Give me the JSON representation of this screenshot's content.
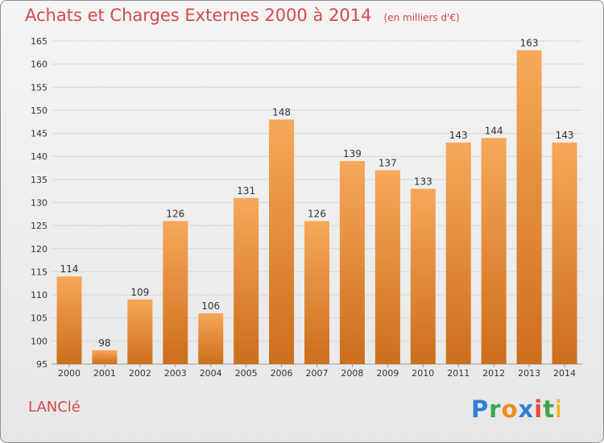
{
  "header": {
    "title": "Achats et Charges Externes 2000 à 2014",
    "unit": "(en milliers d'€)"
  },
  "footer": {
    "commune": "LANClé",
    "logo": "Proxiti"
  },
  "colors": {
    "bar_top": "#f7a85a",
    "bar_bottom": "#cc6e1b",
    "title": "#d24a4e",
    "grid": "#d6d6d6",
    "axis_text": "#333333"
  },
  "chart_data": {
    "type": "bar",
    "title": "Achats et Charges Externes 2000 à 2014",
    "xlabel": "",
    "ylabel": "",
    "categories": [
      "2000",
      "2001",
      "2002",
      "2003",
      "2004",
      "2005",
      "2006",
      "2007",
      "2008",
      "2009",
      "2010",
      "2011",
      "2012",
      "2013",
      "2014"
    ],
    "values": [
      114,
      98,
      109,
      126,
      106,
      131,
      148,
      126,
      139,
      137,
      133,
      143,
      144,
      163,
      143
    ],
    "ylim": [
      95,
      165
    ],
    "yticks": [
      95,
      100,
      105,
      110,
      115,
      120,
      125,
      130,
      135,
      140,
      145,
      150,
      155,
      160,
      165
    ],
    "grid": true,
    "legend": "none"
  }
}
